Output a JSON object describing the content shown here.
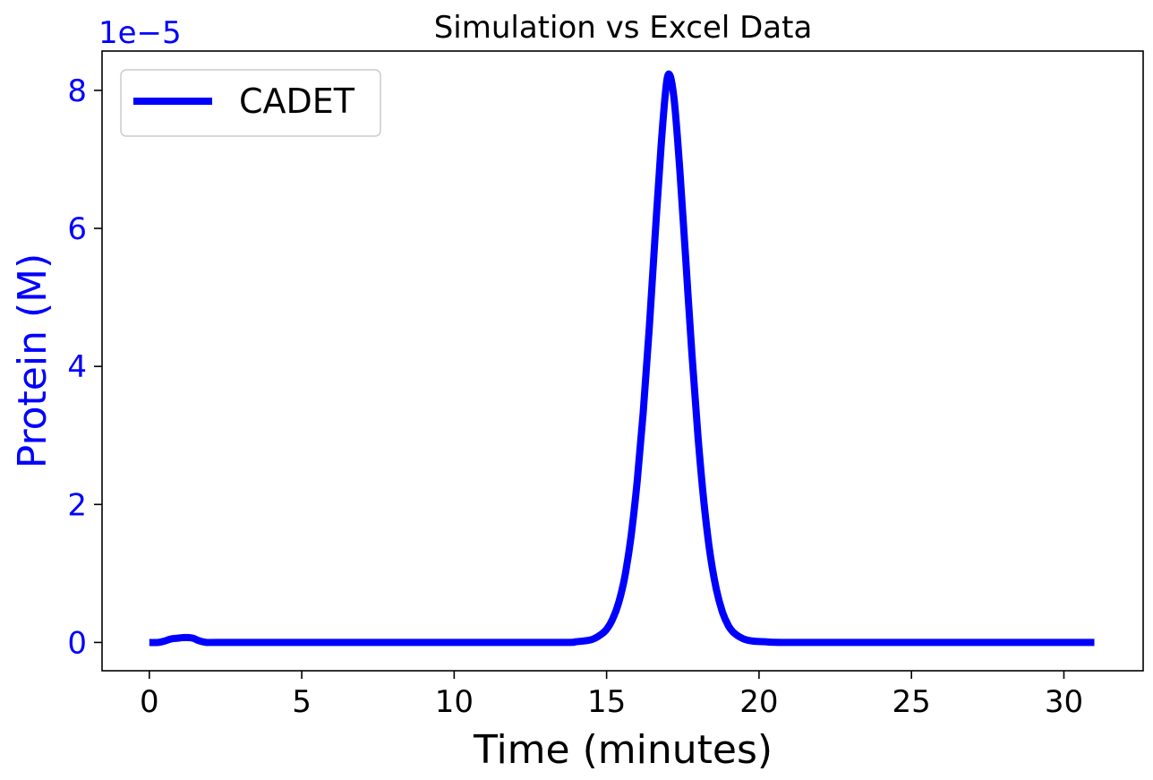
{
  "chart_data": {
    "type": "line",
    "title": "Simulation vs Excel Data",
    "xlabel": "Time (minutes)",
    "ylabel": "Protein (M)",
    "y_offset_label": "1e−5",
    "y_scale_exponent": -5,
    "xlim": [
      -1.55,
      32.6
    ],
    "ylim": [
      -0.41,
      8.57
    ],
    "x_ticks": [
      0,
      5,
      10,
      15,
      20,
      25,
      30
    ],
    "x_tick_labels": [
      "0",
      "5",
      "10",
      "15",
      "20",
      "25",
      "30"
    ],
    "y_ticks": [
      0,
      2,
      4,
      6,
      8
    ],
    "y_tick_labels": [
      "0",
      "2",
      "4",
      "6",
      "8"
    ],
    "grid": false,
    "legend_position": "top-left",
    "colors": {
      "series": "#0000ff",
      "ylabel": "#0000ff",
      "axes": "#000000"
    },
    "series": [
      {
        "name": "CADET",
        "x": [
          0,
          0.3,
          0.5,
          0.7,
          0.9,
          1.1,
          1.3,
          1.45,
          1.6,
          1.75,
          1.9,
          2.2,
          5,
          10,
          13.5,
          14.0,
          14.5,
          14.8,
          15.0,
          15.2,
          15.4,
          15.6,
          15.8,
          16.0,
          16.2,
          16.4,
          16.6,
          16.8,
          17.0,
          17.2,
          17.4,
          17.6,
          17.8,
          18.0,
          18.2,
          18.4,
          18.6,
          18.8,
          19.0,
          19.2,
          19.5,
          19.8,
          20.2,
          21,
          25,
          31
        ],
        "y": [
          0.0,
          0.0,
          0.02,
          0.05,
          0.06,
          0.07,
          0.07,
          0.06,
          0.03,
          0.01,
          0.0,
          0.0,
          0.0,
          0.0,
          0.0,
          0.01,
          0.04,
          0.11,
          0.19,
          0.34,
          0.58,
          0.96,
          1.53,
          2.32,
          3.33,
          4.56,
          5.95,
          7.27,
          8.2,
          7.93,
          6.85,
          5.52,
          4.17,
          2.97,
          2.0,
          1.27,
          0.77,
          0.44,
          0.24,
          0.13,
          0.05,
          0.02,
          0.01,
          0.0,
          0.0,
          0.0
        ]
      }
    ]
  }
}
